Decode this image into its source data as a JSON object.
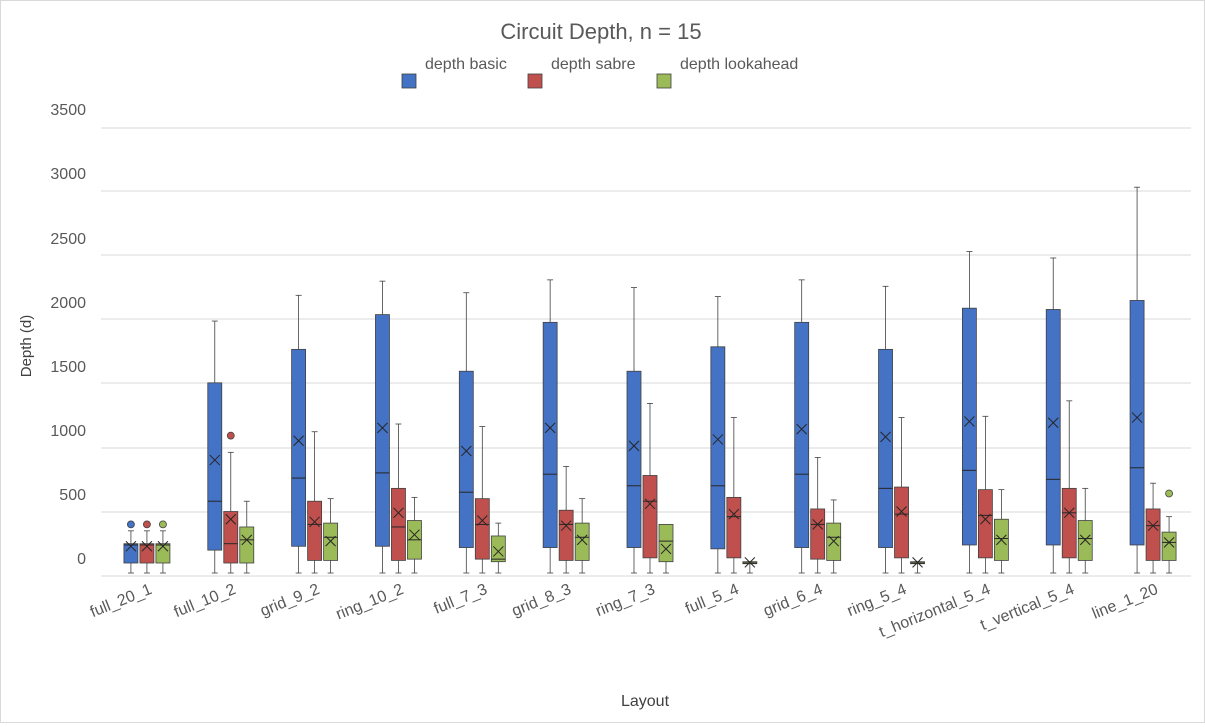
{
  "chart_data": {
    "type": "box",
    "title": "Circuit Depth, n = 15",
    "xlabel": "Layout",
    "ylabel": "Depth (d)",
    "ylim": [
      0,
      3500
    ],
    "yticks": [
      0,
      500,
      1000,
      1500,
      2000,
      2500,
      3000,
      3500
    ],
    "grid": true,
    "legend_position": "top-center",
    "categories": [
      "full_20_1",
      "full_10_2",
      "grid_9_2",
      "ring_10_2",
      "full_7_3",
      "grid_8_3",
      "ring_7_3",
      "full_5_4",
      "grid_6_4",
      "ring_5_4",
      "t_horizontal_5_4",
      "t_vertical_5_4",
      "line_1_20"
    ],
    "series": [
      {
        "name": "depth basic",
        "color": "#4472c4",
        "boxes": [
          {
            "min": 0,
            "q1": 0,
            "median": 140,
            "q3": 150,
            "max": 250,
            "mean": 130,
            "outliers": [
              300
            ]
          },
          {
            "min": 0,
            "q1": 100,
            "median": 480,
            "q3": 1400,
            "max": 1880,
            "mean": 800,
            "outliers": []
          },
          {
            "min": 0,
            "q1": 130,
            "median": 660,
            "q3": 1660,
            "max": 2080,
            "mean": 950,
            "outliers": []
          },
          {
            "min": 0,
            "q1": 130,
            "median": 700,
            "q3": 1930,
            "max": 2190,
            "mean": 1050,
            "outliers": []
          },
          {
            "min": 0,
            "q1": 120,
            "median": 550,
            "q3": 1490,
            "max": 2100,
            "mean": 870,
            "outliers": []
          },
          {
            "min": 0,
            "q1": 120,
            "median": 690,
            "q3": 1870,
            "max": 2200,
            "mean": 1050,
            "outliers": []
          },
          {
            "min": 0,
            "q1": 120,
            "median": 600,
            "q3": 1490,
            "max": 2140,
            "mean": 910,
            "outliers": []
          },
          {
            "min": 0,
            "q1": 110,
            "median": 600,
            "q3": 1680,
            "max": 2070,
            "mean": 960,
            "outliers": []
          },
          {
            "min": 0,
            "q1": 120,
            "median": 690,
            "q3": 1870,
            "max": 2200,
            "mean": 1040,
            "outliers": []
          },
          {
            "min": 0,
            "q1": 120,
            "median": 580,
            "q3": 1660,
            "max": 2150,
            "mean": 980,
            "outliers": []
          },
          {
            "min": 0,
            "q1": 140,
            "median": 720,
            "q3": 1980,
            "max": 2420,
            "mean": 1100,
            "outliers": []
          },
          {
            "min": 0,
            "q1": 140,
            "median": 650,
            "q3": 1970,
            "max": 2370,
            "mean": 1090,
            "outliers": []
          },
          {
            "min": 0,
            "q1": 140,
            "median": 740,
            "q3": 2040,
            "max": 2920,
            "mean": 1130,
            "outliers": []
          }
        ]
      },
      {
        "name": "depth sabre",
        "color": "#c0504d",
        "boxes": [
          {
            "min": 0,
            "q1": 0,
            "median": 140,
            "q3": 150,
            "max": 250,
            "mean": 130,
            "outliers": [
              300
            ]
          },
          {
            "min": 0,
            "q1": 0,
            "median": 150,
            "q3": 400,
            "max": 860,
            "mean": 340,
            "outliers": [
              990
            ]
          },
          {
            "min": 0,
            "q1": 20,
            "median": 300,
            "q3": 480,
            "max": 1020,
            "mean": 320,
            "outliers": []
          },
          {
            "min": 0,
            "q1": 20,
            "median": 280,
            "q3": 580,
            "max": 1080,
            "mean": 390,
            "outliers": []
          },
          {
            "min": 0,
            "q1": 30,
            "median": 300,
            "q3": 500,
            "max": 1060,
            "mean": 330,
            "outliers": []
          },
          {
            "min": 0,
            "q1": 20,
            "median": 300,
            "q3": 410,
            "max": 750,
            "mean": 290,
            "outliers": []
          },
          {
            "min": 0,
            "q1": 40,
            "median": 480,
            "q3": 680,
            "max": 1240,
            "mean": 460,
            "outliers": []
          },
          {
            "min": 0,
            "q1": 40,
            "median": 360,
            "q3": 510,
            "max": 1130,
            "mean": 380,
            "outliers": []
          },
          {
            "min": 0,
            "q1": 30,
            "median": 300,
            "q3": 420,
            "max": 820,
            "mean": 300,
            "outliers": []
          },
          {
            "min": 0,
            "q1": 40,
            "median": 380,
            "q3": 590,
            "max": 1130,
            "mean": 400,
            "outliers": []
          },
          {
            "min": 0,
            "q1": 40,
            "median": 370,
            "q3": 570,
            "max": 1140,
            "mean": 340,
            "outliers": []
          },
          {
            "min": 0,
            "q1": 40,
            "median": 390,
            "q3": 580,
            "max": 1260,
            "mean": 390,
            "outliers": []
          },
          {
            "min": 0,
            "q1": 20,
            "median": 290,
            "q3": 420,
            "max": 620,
            "mean": 290,
            "outliers": []
          }
        ]
      },
      {
        "name": "depth lookahead",
        "color": "#9bbb59",
        "boxes": [
          {
            "min": 0,
            "q1": 0,
            "median": 140,
            "q3": 150,
            "max": 250,
            "mean": 130,
            "outliers": [
              300
            ]
          },
          {
            "min": 0,
            "q1": 0,
            "median": 180,
            "q3": 280,
            "max": 480,
            "mean": 180,
            "outliers": []
          },
          {
            "min": 0,
            "q1": 20,
            "median": 200,
            "q3": 310,
            "max": 500,
            "mean": 170,
            "outliers": []
          },
          {
            "min": 0,
            "q1": 30,
            "median": 180,
            "q3": 330,
            "max": 510,
            "mean": 220,
            "outliers": []
          },
          {
            "min": 0,
            "q1": 10,
            "median": 30,
            "q3": 210,
            "max": 310,
            "mean": 90,
            "outliers": []
          },
          {
            "min": 0,
            "q1": 20,
            "median": 200,
            "q3": 310,
            "max": 500,
            "mean": 180,
            "outliers": []
          },
          {
            "min": 0,
            "q1": 10,
            "median": 170,
            "q3": 300,
            "max": 300,
            "mean": 110,
            "outliers": []
          },
          {
            "min": 0,
            "q1": 0,
            "median": 0,
            "q3": 10,
            "max": 10,
            "mean": 5,
            "outliers": []
          },
          {
            "min": 0,
            "q1": 20,
            "median": 200,
            "q3": 310,
            "max": 490,
            "mean": 170,
            "outliers": []
          },
          {
            "min": 0,
            "q1": 0,
            "median": 0,
            "q3": 10,
            "max": 10,
            "mean": 5,
            "outliers": []
          },
          {
            "min": 0,
            "q1": 20,
            "median": 190,
            "q3": 340,
            "max": 570,
            "mean": 180,
            "outliers": []
          },
          {
            "min": 0,
            "q1": 20,
            "median": 190,
            "q3": 330,
            "max": 580,
            "mean": 180,
            "outliers": []
          },
          {
            "min": 0,
            "q1": 20,
            "median": 160,
            "q3": 240,
            "max": 360,
            "mean": 160,
            "outliers": [
              540
            ]
          }
        ]
      }
    ]
  }
}
